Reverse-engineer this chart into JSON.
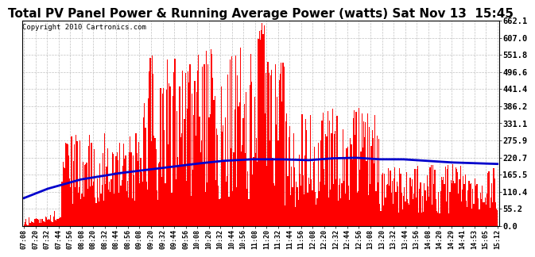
{
  "title": "Total PV Panel Power & Running Average Power (watts) Sat Nov 13  15:45",
  "copyright": "Copyright 2010 Cartronics.com",
  "y_ticks": [
    0.0,
    55.2,
    110.4,
    165.5,
    220.7,
    275.9,
    331.1,
    386.2,
    441.4,
    496.6,
    551.8,
    607.0,
    662.1
  ],
  "y_max": 662.1,
  "y_min": 0.0,
  "bar_color": "#FF0000",
  "line_color": "#0000CC",
  "background_color": "#FFFFFF",
  "grid_color": "#BBBBBB",
  "title_fontsize": 11,
  "copyright_fontsize": 6.5,
  "x_labels": [
    "07:08",
    "07:20",
    "07:32",
    "07:44",
    "07:56",
    "08:08",
    "08:20",
    "08:32",
    "08:44",
    "08:56",
    "09:08",
    "09:20",
    "09:32",
    "09:44",
    "09:56",
    "10:08",
    "10:20",
    "10:32",
    "10:44",
    "10:56",
    "11:08",
    "11:20",
    "11:32",
    "11:44",
    "11:56",
    "12:08",
    "12:20",
    "12:32",
    "12:44",
    "12:56",
    "13:08",
    "13:20",
    "13:32",
    "13:44",
    "13:56",
    "14:08",
    "14:20",
    "14:29",
    "14:41",
    "14:53",
    "15:05",
    "15:12"
  ],
  "ra_keypoints_x": [
    0.0,
    0.05,
    0.12,
    0.2,
    0.28,
    0.36,
    0.42,
    0.48,
    0.54,
    0.6,
    0.65,
    0.7,
    0.75,
    0.8,
    0.85,
    0.9,
    1.0
  ],
  "ra_keypoints_y": [
    90,
    120,
    150,
    170,
    185,
    200,
    210,
    215,
    215,
    212,
    218,
    220,
    215,
    215,
    210,
    205,
    200
  ]
}
